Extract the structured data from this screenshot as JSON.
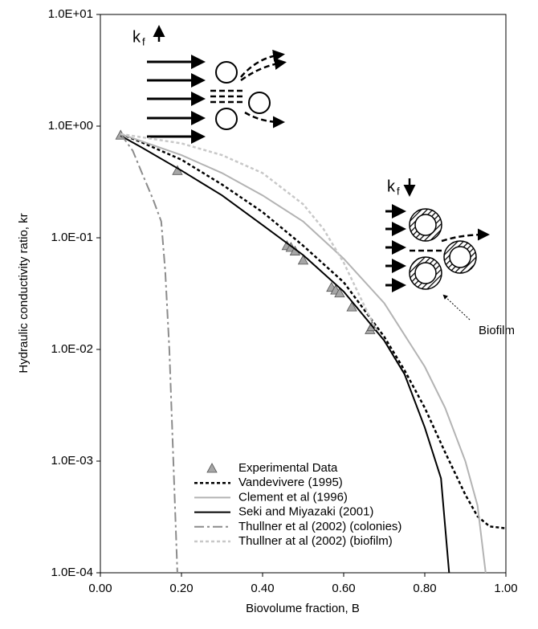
{
  "chart_data": {
    "type": "line",
    "xlabel": "Biovolume fraction, B",
    "ylabel": "Hydraulic conductivity ratio, kr",
    "xlim": [
      0,
      1
    ],
    "ylim": [
      0.0001,
      10
    ],
    "log_y": true,
    "xticks": [
      {
        "value": 0,
        "label": "0.00"
      },
      {
        "value": 0.2,
        "label": "0.20"
      },
      {
        "value": 0.4,
        "label": "0.40"
      },
      {
        "value": 0.6,
        "label": "0.60"
      },
      {
        "value": 0.8,
        "label": "0.80"
      },
      {
        "value": 1,
        "label": "1.00"
      }
    ],
    "yticks": [
      {
        "value": 0.0001,
        "label": "1.0E-04"
      },
      {
        "value": 0.001,
        "label": "1.0E-03"
      },
      {
        "value": 0.01,
        "label": "1.0E-02"
      },
      {
        "value": 0.1,
        "label": "1.0E-01"
      },
      {
        "value": 1,
        "label": "1.0E+00"
      },
      {
        "value": 10,
        "label": "1.0E+01"
      }
    ],
    "legend": "lower center",
    "series": [
      {
        "name": "Experimental Data",
        "color": "#a6a6a6",
        "style": "marker",
        "x": [
          0.05,
          0.19,
          0.46,
          0.47,
          0.48,
          0.5,
          0.57,
          0.58,
          0.59,
          0.62,
          0.665,
          0.67
        ],
        "values": [
          0.83,
          0.4,
          0.085,
          0.082,
          0.076,
          0.063,
          0.036,
          0.034,
          0.032,
          0.024,
          0.015,
          0.016
        ]
      },
      {
        "name": "Vandevivere (1995)",
        "color": "#000000",
        "style": "dotted",
        "x": [
          0.05,
          0.1,
          0.2,
          0.3,
          0.4,
          0.5,
          0.6,
          0.7,
          0.75,
          0.8,
          0.85,
          0.9,
          0.93,
          0.96,
          1.0
        ],
        "values": [
          0.85,
          0.72,
          0.5,
          0.3,
          0.17,
          0.085,
          0.04,
          0.013,
          0.0065,
          0.003,
          0.0012,
          0.0005,
          0.00032,
          0.00026,
          0.00025
        ]
      },
      {
        "name": "Clement et al (1996)",
        "color": "#b3b3b3",
        "style": "solid",
        "x": [
          0.05,
          0.2,
          0.3,
          0.4,
          0.5,
          0.6,
          0.7,
          0.8,
          0.85,
          0.9,
          0.93,
          0.95
        ],
        "values": [
          0.85,
          0.55,
          0.38,
          0.24,
          0.14,
          0.065,
          0.026,
          0.007,
          0.003,
          0.001,
          0.0004,
          0.0001
        ]
      },
      {
        "name": "Seki and Miyazaki (2001)",
        "color": "#000000",
        "style": "solid",
        "x": [
          0.05,
          0.1,
          0.2,
          0.3,
          0.4,
          0.5,
          0.6,
          0.7,
          0.75,
          0.8,
          0.84,
          0.86
        ],
        "values": [
          0.82,
          0.65,
          0.4,
          0.24,
          0.13,
          0.07,
          0.033,
          0.012,
          0.006,
          0.002,
          0.0007,
          0.0001
        ]
      },
      {
        "name": "Thullner et al (2002) (colonies)",
        "color": "#8c8c8c",
        "style": "dashdot",
        "x": [
          0.05,
          0.08,
          0.1,
          0.13,
          0.15,
          0.16,
          0.17,
          0.18,
          0.19
        ],
        "values": [
          0.85,
          0.6,
          0.4,
          0.22,
          0.14,
          0.05,
          0.01,
          0.001,
          0.0001
        ]
      },
      {
        "name": "Thullner at al (2002) (biofilm)",
        "color": "#c8c8c8",
        "style": "dotted",
        "x": [
          0.05,
          0.2,
          0.3,
          0.4,
          0.5,
          0.55,
          0.6,
          0.65,
          0.68
        ],
        "values": [
          0.85,
          0.7,
          0.55,
          0.38,
          0.2,
          0.12,
          0.06,
          0.025,
          0.015
        ]
      }
    ],
    "annotations": [
      {
        "text": "k",
        "subscript": "f"
      },
      {
        "text": "k",
        "subscript": "f"
      },
      {
        "text": "Biofilm"
      }
    ]
  }
}
